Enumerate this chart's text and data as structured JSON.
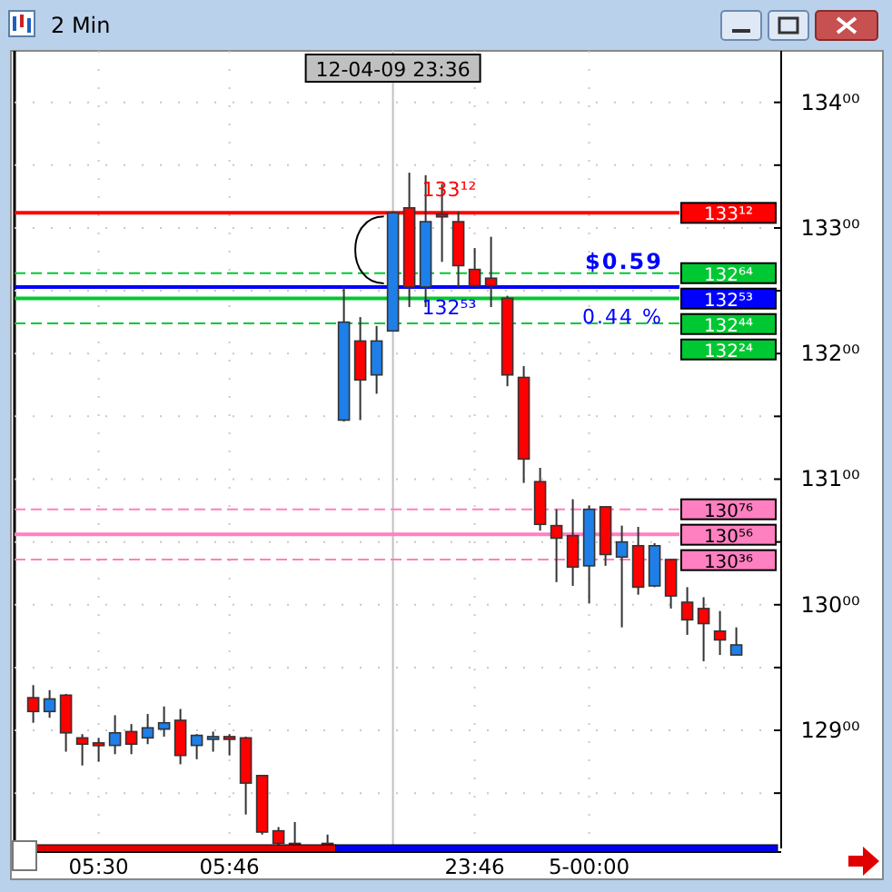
{
  "chart_data": {
    "type": "candlestick",
    "title": "2 Min",
    "categories": [
      null,
      null,
      null,
      null,
      "05:30",
      null,
      null,
      null,
      null,
      null,
      null,
      null,
      "05:46",
      null,
      null,
      null,
      null,
      null,
      null,
      null,
      null,
      null,
      "12-04-09 23:36",
      null,
      null,
      null,
      null,
      "23:46",
      null,
      null,
      null,
      null,
      null,
      null,
      "5-00:00",
      null,
      null,
      null,
      null,
      null,
      null,
      null,
      null,
      null
    ],
    "ohlc": [
      [
        129.26,
        129.36,
        129.06,
        129.15
      ],
      [
        129.15,
        129.32,
        129.1,
        129.25
      ],
      [
        129.28,
        129.29,
        128.83,
        128.98
      ],
      [
        128.94,
        128.97,
        128.72,
        128.89
      ],
      [
        128.9,
        128.94,
        128.75,
        128.88
      ],
      [
        128.88,
        129.12,
        128.81,
        128.98
      ],
      [
        128.99,
        129.05,
        128.81,
        128.89
      ],
      [
        128.94,
        129.13,
        128.89,
        129.02
      ],
      [
        129.01,
        129.19,
        128.95,
        129.06
      ],
      [
        129.08,
        129.17,
        128.73,
        128.8
      ],
      [
        128.88,
        128.97,
        128.77,
        128.96
      ],
      [
        128.93,
        128.99,
        128.83,
        128.95
      ],
      [
        128.95,
        128.97,
        128.8,
        128.93
      ],
      [
        128.94,
        128.95,
        128.33,
        128.58
      ],
      [
        128.64,
        128.64,
        128.17,
        128.19
      ],
      [
        128.2,
        128.23,
        128.08,
        128.1
      ],
      [
        128.1,
        128.27,
        128.08,
        128.09
      ],
      null,
      [
        128.1,
        128.17,
        128.08,
        128.09
      ],
      [
        131.47,
        132.53,
        131.46,
        132.25
      ],
      [
        132.1,
        132.29,
        131.47,
        131.79
      ],
      [
        131.83,
        132.22,
        131.68,
        132.1
      ],
      [
        132.18,
        133.13,
        132.18,
        133.12
      ],
      [
        133.16,
        133.44,
        132.37,
        132.53
      ],
      [
        132.53,
        133.42,
        132.37,
        133.05
      ],
      [
        133.11,
        133.35,
        132.73,
        133.09
      ],
      [
        133.05,
        133.13,
        132.53,
        132.7
      ],
      [
        132.67,
        132.84,
        132.53,
        132.54
      ],
      [
        132.6,
        132.93,
        132.37,
        132.54
      ],
      [
        132.44,
        132.46,
        131.74,
        131.83
      ],
      [
        131.81,
        131.9,
        130.97,
        131.16
      ],
      [
        130.98,
        131.09,
        130.59,
        130.64
      ],
      [
        130.63,
        130.76,
        130.18,
        130.53
      ],
      [
        130.55,
        130.84,
        130.15,
        130.3
      ],
      [
        130.31,
        130.79,
        130.01,
        130.76
      ],
      [
        130.78,
        130.78,
        130.31,
        130.4
      ],
      [
        130.38,
        130.63,
        129.82,
        130.5
      ],
      [
        130.47,
        130.62,
        130.08,
        130.14
      ],
      [
        130.15,
        130.49,
        130.14,
        130.47
      ],
      [
        130.36,
        130.36,
        129.97,
        130.07
      ],
      [
        130.02,
        130.14,
        129.76,
        129.88
      ],
      [
        129.97,
        130.06,
        129.55,
        129.85
      ],
      [
        129.79,
        129.95,
        129.6,
        129.72
      ],
      [
        129.6,
        129.82,
        129.6,
        129.68
      ]
    ],
    "colors": [
      "#ff0000",
      "#1e7fe8",
      "#ff0000",
      "#ff0000",
      "#ff0000",
      "#1e7fe8",
      "#ff0000",
      "#1e7fe8",
      "#1e7fe8",
      "#ff0000",
      "#1e7fe8",
      "#1e7fe8",
      "#ff0000",
      "#ff0000",
      "#ff0000",
      "#ff0000",
      "#ff0000",
      null,
      "#ff0000",
      "#1e7fe8",
      "#ff0000",
      "#1e7fe8",
      "#1e7fe8",
      "#ff0000",
      "#1e7fe8",
      "#ff0000",
      "#ff0000",
      "#ff0000",
      "#ff0000",
      "#ff0000",
      "#ff0000",
      "#ff0000",
      "#ff0000",
      "#ff0000",
      "#1e7fe8",
      "#ff0000",
      "#1e7fe8",
      "#ff0000",
      "#1e7fe8",
      "#ff0000",
      "#ff0000",
      "#ff0000",
      "#ff0000",
      "#1e7fe8"
    ],
    "ylim": [
      128.06,
      134.41
    ],
    "yticks": [
      {
        "value": 128.5,
        "label": null
      },
      {
        "value": 129,
        "label": "129⁰⁰"
      },
      {
        "value": 129.5,
        "label": null
      },
      {
        "value": 130,
        "label": "130⁰⁰"
      },
      {
        "value": 130.5,
        "label": null
      },
      {
        "value": 131,
        "label": "131⁰⁰"
      },
      {
        "value": 131.5,
        "label": null
      },
      {
        "value": 132,
        "label": "132⁰⁰"
      },
      {
        "value": 132.5,
        "label": null
      },
      {
        "value": 133,
        "label": "133⁰⁰"
      },
      {
        "value": 133.5,
        "label": null
      },
      {
        "value": 134,
        "label": "134⁰⁰"
      }
    ],
    "grid": true,
    "ref_lines": [
      {
        "axis": "x",
        "value": "12-04-09 23:36",
        "color": "#c0c0c0"
      },
      {
        "axis": "y",
        "value": 133.12,
        "label": "133¹²",
        "color": "#ff0000",
        "line_style": "solid"
      },
      {
        "axis": "y",
        "value": 132.64,
        "label": "132⁶⁴",
        "color": "#00c832",
        "line_style": "dashed"
      },
      {
        "axis": "y",
        "value": 132.53,
        "label": "132⁵³",
        "color": "#0000ff",
        "line_style": "solid"
      },
      {
        "axis": "y",
        "value": 132.44,
        "label": "132⁴⁴",
        "color": "#00c832",
        "line_style": "solid"
      },
      {
        "axis": "y",
        "value": 132.24,
        "label": "132²⁴",
        "color": "#00c832",
        "line_style": "dashed"
      },
      {
        "axis": "y",
        "value": 130.76,
        "label": "130⁷⁶",
        "color": "#ff80c0",
        "line_style": "dashed"
      },
      {
        "axis": "y",
        "value": 130.56,
        "label": "130⁵⁶",
        "color": "#ff80c0",
        "line_style": "solid"
      },
      {
        "axis": "y",
        "value": 130.36,
        "label": "130³⁶",
        "color": "#ff80c0",
        "line_style": "dashed"
      }
    ],
    "annotations": [
      {
        "text": "133¹²",
        "y": 133.12
      },
      {
        "text": "132⁵³",
        "y": 132.53
      },
      "$0.59",
      "0.44 %"
    ]
  }
}
